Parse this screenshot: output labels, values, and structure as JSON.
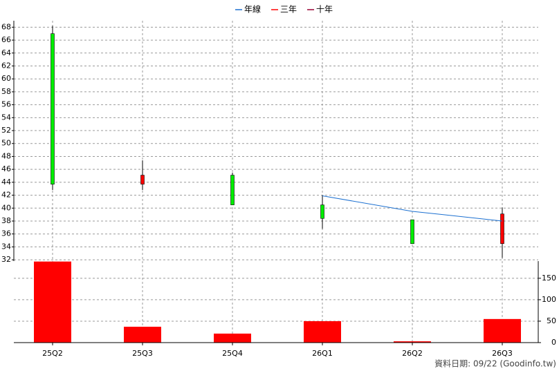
{
  "chart_data": [
    {
      "type": "candlestick",
      "open": [
        67,
        43.7,
        45.1,
        40.5,
        38.2,
        34.5
      ],
      "high": [
        68.2,
        47.4,
        45.5,
        42,
        38.2,
        40.1
      ],
      "low": [
        42.8,
        42.8,
        40.5,
        36.8,
        34.5,
        32.3
      ],
      "close": [
        43.7,
        45.1,
        40.5,
        38.4,
        34.5,
        39.1
      ],
      "up_color": "#ff0000",
      "down_color": "#00ee00",
      "series": [
        {
          "name": "年線",
          "color": "#1a6fd0",
          "values": [
            null,
            null,
            null,
            41.9,
            39.5,
            38.0
          ]
        },
        {
          "name": "三年",
          "color": "#ff0000",
          "values": [
            null,
            null,
            null,
            null,
            null,
            null
          ]
        },
        {
          "name": "十年",
          "color": "#990033",
          "values": [
            null,
            null,
            null,
            null,
            null,
            null
          ]
        }
      ],
      "ylim": [
        31.8,
        69
      ],
      "yticks": [
        32,
        34,
        36,
        38,
        40,
        42,
        44,
        46,
        48,
        50,
        52,
        54,
        56,
        58,
        60,
        62,
        64,
        66,
        68
      ],
      "grid": true
    },
    {
      "type": "bar",
      "categories": [
        "25Q2",
        "25Q3",
        "25Q4",
        "26Q1",
        "26Q2",
        "26Q3"
      ],
      "values": [
        189,
        37,
        21,
        50,
        3,
        55
      ],
      "color": "#ff0000",
      "ylim": [
        0,
        190
      ],
      "yticks": [
        0,
        50,
        100,
        150
      ],
      "grid": true
    }
  ],
  "footer": "資料日期: 09/22  (Goodinfo.tw)"
}
